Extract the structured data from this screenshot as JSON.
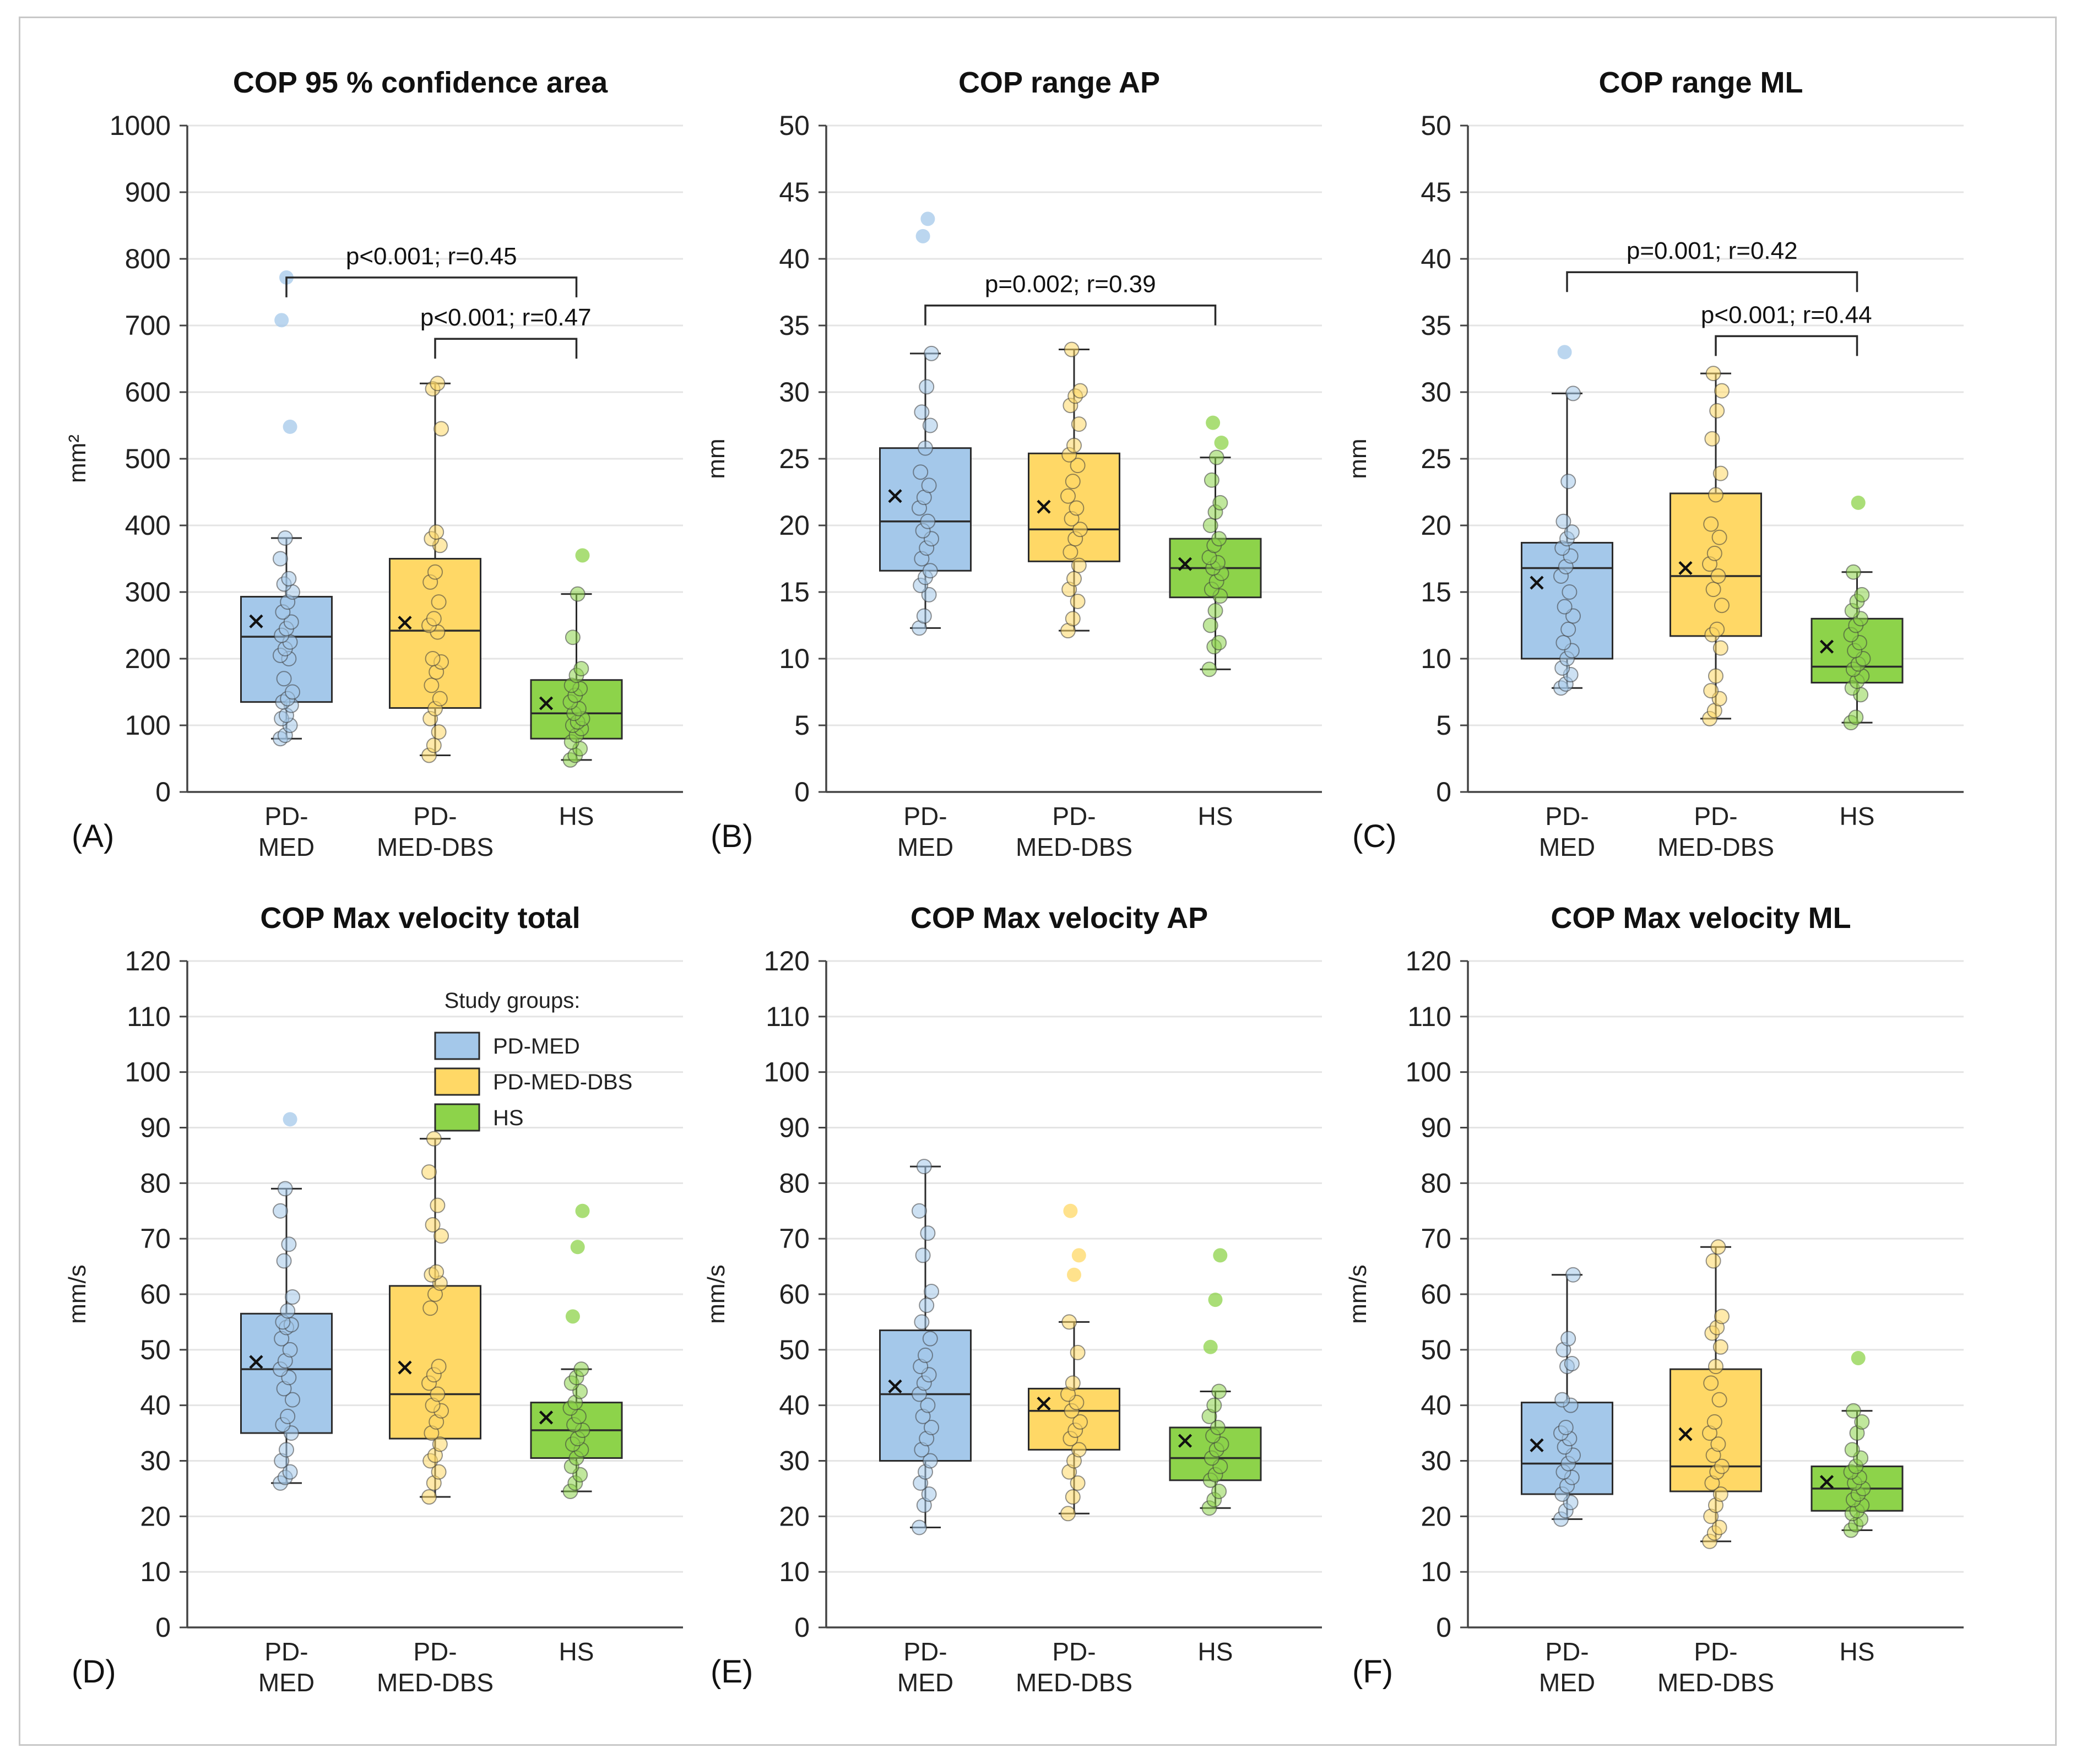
{
  "colors": {
    "PD-MED": "#a4c8ea",
    "PD-MED-DBS": "#ffd866",
    "HS": "#8dd34a",
    "line": "#2b2b2b",
    "grid": "#e4e4e4",
    "axis": "#444444"
  },
  "legend": {
    "title": "Study groups:",
    "items": [
      "PD-MED",
      "PD-MED-DBS",
      "HS"
    ]
  },
  "chart_data": [
    {
      "type": "box",
      "panel_label": "(A)",
      "title": "COP 95 % confidence area",
      "ylabel": "mm²",
      "ylim": [
        0,
        1000
      ],
      "yticks": [
        0,
        100,
        200,
        300,
        400,
        500,
        600,
        700,
        800,
        900,
        1000
      ],
      "categories": [
        [
          "PD-",
          "MED"
        ],
        [
          "PD-",
          "MED-DBS"
        ],
        [
          "HS"
        ]
      ],
      "boxes": [
        {
          "group": "PD-MED",
          "min": 80,
          "q1": 135,
          "median": 233,
          "q3": 293,
          "max": 381,
          "mean": 256,
          "points": [
            80,
            85,
            100,
            110,
            115,
            130,
            135,
            140,
            150,
            170,
            200,
            205,
            215,
            225,
            235,
            245,
            255,
            270,
            285,
            300,
            312,
            320,
            350,
            381,
            548,
            708,
            772
          ]
        },
        {
          "group": "PD-MED-DBS",
          "min": 55,
          "q1": 126,
          "median": 242,
          "q3": 350,
          "max": 613,
          "mean": 254,
          "points": [
            55,
            70,
            90,
            110,
            125,
            140,
            160,
            180,
            195,
            200,
            240,
            250,
            260,
            285,
            315,
            330,
            370,
            380,
            390,
            545,
            605,
            613
          ]
        },
        {
          "group": "HS",
          "min": 48,
          "q1": 80,
          "median": 118,
          "q3": 168,
          "max": 297,
          "mean": 133,
          "points": [
            48,
            55,
            65,
            75,
            85,
            95,
            100,
            105,
            110,
            118,
            125,
            135,
            145,
            155,
            160,
            175,
            185,
            232,
            297,
            355
          ]
        }
      ],
      "brackets": [
        {
          "from": 0,
          "to": 2,
          "y": 772,
          "text": "p<0.001; r=0.45"
        },
        {
          "from": 1,
          "to": 2,
          "y": 680,
          "text": "p<0.001; r=0.47"
        }
      ]
    },
    {
      "type": "box",
      "panel_label": "(B)",
      "title": "COP range AP",
      "ylabel": "mm",
      "ylim": [
        0,
        50
      ],
      "yticks": [
        0,
        5,
        10,
        15,
        20,
        25,
        30,
        35,
        40,
        45,
        50
      ],
      "categories": [
        [
          "PD-",
          "MED"
        ],
        [
          "PD-",
          "MED-DBS"
        ],
        [
          "HS"
        ]
      ],
      "boxes": [
        {
          "group": "PD-MED",
          "min": 12.3,
          "q1": 16.6,
          "median": 20.3,
          "q3": 25.8,
          "max": 32.9,
          "mean": 22.2,
          "points": [
            12.3,
            13.2,
            14.8,
            15.5,
            16.1,
            16.6,
            17.5,
            18.3,
            19.0,
            19.6,
            20.3,
            21.3,
            22.1,
            23.0,
            24.0,
            25.8,
            27.5,
            28.5,
            30.4,
            32.9,
            41.7,
            43.0
          ]
        },
        {
          "group": "PD-MED-DBS",
          "min": 12.1,
          "q1": 17.3,
          "median": 19.7,
          "q3": 25.4,
          "max": 33.2,
          "mean": 21.4,
          "points": [
            12.1,
            13.0,
            14.3,
            15.2,
            16.0,
            17.0,
            18.0,
            19.0,
            19.7,
            20.5,
            21.3,
            22.2,
            23.3,
            24.5,
            25.3,
            26.0,
            27.6,
            29.0,
            29.7,
            30.1,
            33.2
          ]
        },
        {
          "group": "HS",
          "min": 9.2,
          "q1": 14.6,
          "median": 16.8,
          "q3": 19.0,
          "max": 25.1,
          "mean": 17.1,
          "points": [
            9.2,
            10.9,
            11.2,
            12.5,
            13.6,
            14.7,
            15.2,
            15.8,
            16.4,
            16.8,
            17.2,
            17.6,
            18.5,
            19.0,
            20.0,
            21.0,
            21.7,
            23.4,
            25.1,
            26.2,
            27.7
          ]
        }
      ],
      "brackets": [
        {
          "from": 0,
          "to": 2,
          "y": 36.5,
          "text": "p=0.002; r=0.39"
        }
      ]
    },
    {
      "type": "box",
      "panel_label": "(C)",
      "title": "COP range ML",
      "ylabel": "mm",
      "ylim": [
        0,
        50
      ],
      "yticks": [
        0,
        5,
        10,
        15,
        20,
        25,
        30,
        35,
        40,
        45,
        50
      ],
      "categories": [
        [
          "PD-",
          "MED"
        ],
        [
          "PD-",
          "MED-DBS"
        ],
        [
          "HS"
        ]
      ],
      "boxes": [
        {
          "group": "PD-MED",
          "min": 7.8,
          "q1": 10.0,
          "median": 16.8,
          "q3": 18.7,
          "max": 29.9,
          "mean": 15.7,
          "points": [
            7.8,
            8.1,
            8.8,
            9.3,
            10.0,
            10.6,
            11.2,
            12.2,
            13.2,
            13.9,
            15.0,
            16.2,
            16.9,
            17.7,
            18.3,
            19.0,
            19.5,
            20.3,
            23.3,
            29.9,
            33.0
          ]
        },
        {
          "group": "PD-MED-DBS",
          "min": 5.5,
          "q1": 11.7,
          "median": 16.2,
          "q3": 22.4,
          "max": 31.4,
          "mean": 16.8,
          "points": [
            5.5,
            6.1,
            7.0,
            7.6,
            8.7,
            10.8,
            11.8,
            12.2,
            14.0,
            15.2,
            16.2,
            17.1,
            17.9,
            19.1,
            20.1,
            22.3,
            23.9,
            26.5,
            28.6,
            30.1,
            31.4
          ]
        },
        {
          "group": "HS",
          "min": 5.2,
          "q1": 8.2,
          "median": 9.4,
          "q3": 13.0,
          "max": 16.5,
          "mean": 10.9,
          "points": [
            5.2,
            5.6,
            7.3,
            7.8,
            8.3,
            8.7,
            9.2,
            9.6,
            10.0,
            10.6,
            11.2,
            11.8,
            12.5,
            13.0,
            13.6,
            14.3,
            14.8,
            16.5,
            21.7
          ]
        }
      ],
      "brackets": [
        {
          "from": 0,
          "to": 2,
          "y": 39.0,
          "text": "p=0.001; r=0.42"
        },
        {
          "from": 1,
          "to": 2,
          "y": 34.2,
          "text": "p<0.001; r=0.44"
        }
      ]
    },
    {
      "type": "box",
      "panel_label": "(D)",
      "title": "COP Max velocity total",
      "ylabel": "mm/s",
      "ylim": [
        0,
        120
      ],
      "yticks": [
        0,
        10,
        20,
        30,
        40,
        50,
        60,
        70,
        80,
        90,
        100,
        110,
        120
      ],
      "categories": [
        [
          "PD-",
          "MED"
        ],
        [
          "PD-",
          "MED-DBS"
        ],
        [
          "HS"
        ]
      ],
      "legend": true,
      "boxes": [
        {
          "group": "PD-MED",
          "min": 26,
          "q1": 35,
          "median": 46.5,
          "q3": 56.5,
          "max": 79,
          "mean": 47.8,
          "points": [
            26,
            27,
            28,
            30,
            32,
            35,
            36.5,
            38,
            41,
            43,
            45,
            46.5,
            48,
            50,
            52,
            54,
            54.5,
            55,
            57,
            59.5,
            66,
            69,
            75,
            79,
            91.5
          ]
        },
        {
          "group": "PD-MED-DBS",
          "min": 23.5,
          "q1": 34,
          "median": 42,
          "q3": 61.5,
          "max": 88,
          "mean": 46.8,
          "points": [
            23.5,
            26,
            28,
            30,
            31,
            33,
            35,
            37,
            39,
            40,
            42,
            44,
            45.5,
            47,
            57.5,
            60,
            62,
            63.5,
            64,
            70.5,
            72.5,
            76,
            82,
            88
          ]
        },
        {
          "group": "HS",
          "min": 24.5,
          "q1": 30.5,
          "median": 35.5,
          "q3": 40.5,
          "max": 46.5,
          "mean": 37.8,
          "points": [
            24.5,
            26,
            27.5,
            29,
            30.5,
            32,
            33,
            34,
            35.5,
            36.5,
            38,
            39.5,
            40.5,
            42.5,
            44,
            45,
            46.5,
            56,
            68.5,
            75
          ]
        }
      ]
    },
    {
      "type": "box",
      "panel_label": "(E)",
      "title": "COP Max velocity AP",
      "ylabel": "mm/s",
      "ylim": [
        0,
        120
      ],
      "yticks": [
        0,
        10,
        20,
        30,
        40,
        50,
        60,
        70,
        80,
        90,
        100,
        110,
        120
      ],
      "categories": [
        [
          "PD-",
          "MED"
        ],
        [
          "PD-",
          "MED-DBS"
        ],
        [
          "HS"
        ]
      ],
      "boxes": [
        {
          "group": "PD-MED",
          "min": 18,
          "q1": 30,
          "median": 42,
          "q3": 53.5,
          "max": 83,
          "mean": 43.4,
          "points": [
            18,
            22,
            24,
            26,
            28,
            30,
            32,
            34,
            36,
            38,
            40,
            42,
            44,
            45.5,
            47,
            49,
            52,
            55,
            58,
            60.5,
            67,
            71,
            75,
            83
          ]
        },
        {
          "group": "PD-MED-DBS",
          "min": 20.5,
          "q1": 32,
          "median": 39,
          "q3": 43,
          "max": 55,
          "mean": 40.3,
          "points": [
            20.5,
            23.5,
            26,
            28,
            30,
            32,
            34,
            35.5,
            37,
            39,
            40.5,
            42,
            44,
            49.5,
            55,
            63.5,
            67,
            75
          ]
        },
        {
          "group": "HS",
          "min": 21.5,
          "q1": 26.5,
          "median": 30.5,
          "q3": 36,
          "max": 42.5,
          "mean": 33.6,
          "points": [
            21.5,
            23,
            24.5,
            26.5,
            27.5,
            29,
            30.5,
            32,
            33,
            34.5,
            36,
            38,
            40,
            42.5,
            50.5,
            59,
            67
          ]
        }
      ]
    },
    {
      "type": "box",
      "panel_label": "(F)",
      "title": "COP Max velocity ML",
      "ylabel": "mm/s",
      "ylim": [
        0,
        120
      ],
      "yticks": [
        0,
        10,
        20,
        30,
        40,
        50,
        60,
        70,
        80,
        90,
        100,
        110,
        120
      ],
      "categories": [
        [
          "PD-",
          "MED"
        ],
        [
          "PD-",
          "MED-DBS"
        ],
        [
          "HS"
        ]
      ],
      "boxes": [
        {
          "group": "PD-MED",
          "min": 19.5,
          "q1": 24,
          "median": 29.5,
          "q3": 40.5,
          "max": 63.5,
          "mean": 32.8,
          "points": [
            19.5,
            21,
            22.5,
            24,
            25.5,
            27,
            28,
            29.5,
            31,
            32.5,
            34,
            35,
            36,
            40,
            41,
            47,
            47.5,
            50,
            52,
            63.5
          ]
        },
        {
          "group": "PD-MED-DBS",
          "min": 15.5,
          "q1": 24.5,
          "median": 29,
          "q3": 46.5,
          "max": 68.5,
          "mean": 34.8,
          "points": [
            15.5,
            17,
            18,
            20,
            22,
            24,
            26,
            28,
            29,
            31,
            33,
            35,
            37,
            41,
            44,
            47,
            50.5,
            53,
            54,
            56,
            66,
            68.5
          ]
        },
        {
          "group": "HS",
          "min": 17.5,
          "q1": 21,
          "median": 25,
          "q3": 29,
          "max": 39,
          "mean": 26.2,
          "points": [
            17.5,
            18.5,
            19.5,
            20.5,
            21,
            22,
            23,
            24,
            25,
            26,
            27,
            28,
            29,
            30.5,
            32,
            35,
            37,
            39,
            48.5
          ]
        }
      ]
    }
  ]
}
